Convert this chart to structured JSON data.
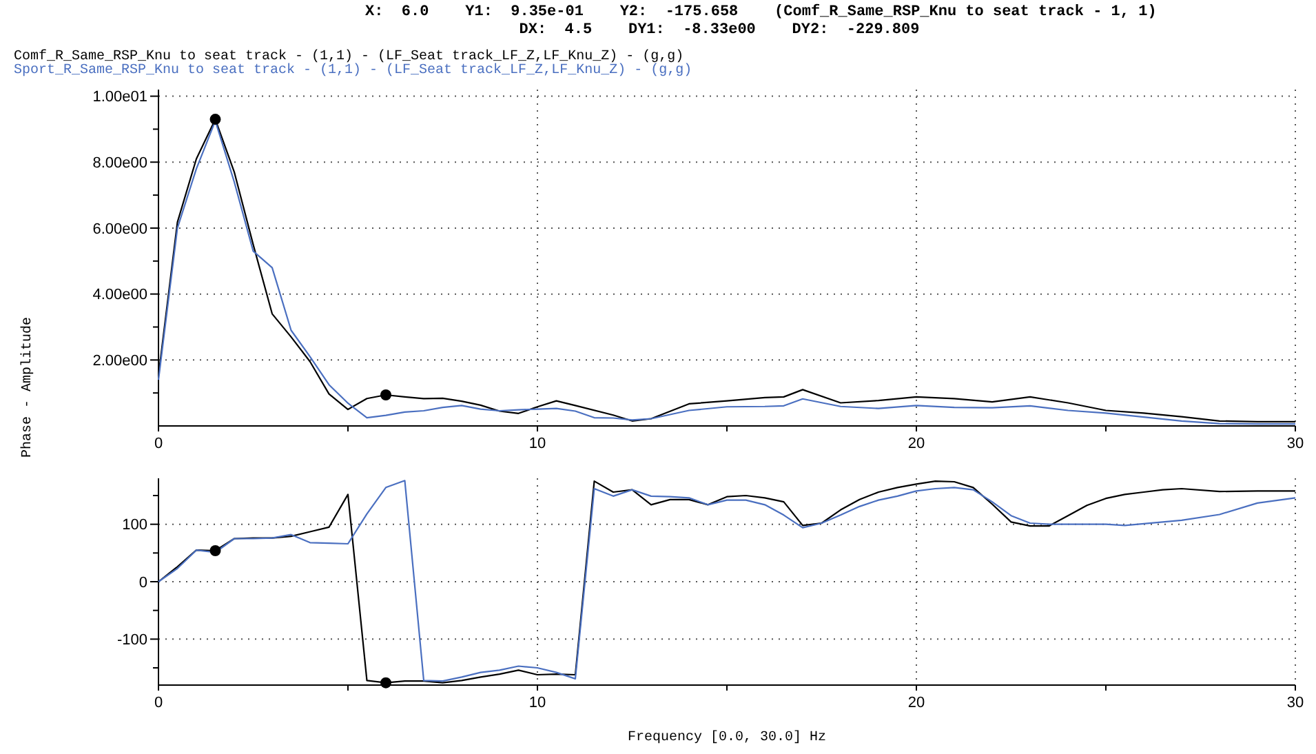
{
  "chart_data": [
    {
      "type": "line",
      "annotations": [
        "X:  6.0    Y1:  9.35e-01    Y2:  -175.658    (Comf_R_Same_RSP_Knu to seat track - 1, 1)",
        "DX:  4.5    DY1:  -8.33e00    DY2:  -229.809"
      ],
      "ylabel": "Phase - Amplitude",
      "legend": "top left",
      "grid": true,
      "marker": "none",
      "line_style": "solid",
      "xlim": [
        0,
        30
      ],
      "ylim": [
        0,
        10.2
      ],
      "xticks": [
        0,
        {
          "value": 5,
          "label": null
        },
        10,
        {
          "value": 15,
          "label": null
        },
        20,
        {
          "value": 25,
          "label": null
        },
        30
      ],
      "yticks": [
        {
          "value": 1,
          "label": null
        },
        {
          "value": 2,
          "label": "2.00e00"
        },
        {
          "value": 3,
          "label": null
        },
        {
          "value": 4,
          "label": "4.00e00"
        },
        {
          "value": 5,
          "label": null
        },
        {
          "value": 6,
          "label": "6.00e00"
        },
        {
          "value": 7,
          "label": null
        },
        {
          "value": 8,
          "label": "8.00e00"
        },
        {
          "value": 9,
          "label": null
        },
        {
          "value": 10,
          "label": "1.00e01"
        }
      ],
      "series": [
        {
          "name": "Comf_R_Same_RSP_Knu to seat track - (1,1) - (LF_Seat track_LF_Z,LF_Knu_Z) - (g,g)",
          "color": "#000000",
          "x": [
            0,
            0.5,
            1,
            1.5,
            2,
            2.5,
            3,
            3.5,
            4,
            4.5,
            5,
            5.5,
            6,
            6.5,
            7,
            7.5,
            8,
            8.5,
            9,
            9.5,
            10,
            10.5,
            11,
            12,
            12.5,
            13,
            14,
            15,
            16,
            16.5,
            17,
            18,
            19,
            20,
            21,
            22,
            23,
            24,
            25,
            26,
            27,
            28,
            29,
            30
          ],
          "values": [
            1.53,
            6.18,
            8.1,
            9.3,
            7.7,
            5.5,
            3.4,
            2.7,
            1.95,
            0.97,
            0.5,
            0.83,
            0.94,
            0.88,
            0.83,
            0.84,
            0.75,
            0.63,
            0.45,
            0.38,
            0.58,
            0.76,
            0.62,
            0.33,
            0.15,
            0.22,
            0.67,
            0.76,
            0.86,
            0.88,
            1.1,
            0.7,
            0.77,
            0.88,
            0.83,
            0.73,
            0.88,
            0.7,
            0.47,
            0.39,
            0.28,
            0.15,
            0.13,
            0.13
          ]
        },
        {
          "name": "Sport_R_Same_RSP_Knu to seat track - (1,1) - (LF_Seat track_LF_Z,LF_Knu_Z) - (g,g)",
          "color": "#4a6fc0",
          "x": [
            0,
            0.5,
            1,
            1.5,
            2,
            2.5,
            3,
            3.5,
            4,
            4.5,
            5,
            5.5,
            6,
            6.5,
            7,
            7.5,
            8,
            8.5,
            9,
            9.5,
            10,
            10.5,
            11,
            11.5,
            12,
            12.5,
            13,
            14,
            15,
            16,
            16.5,
            17,
            18,
            19,
            20,
            21,
            22,
            23,
            24,
            25,
            26,
            27,
            28,
            29,
            30
          ],
          "values": [
            1.4,
            6.0,
            7.8,
            9.25,
            7.4,
            5.3,
            4.8,
            2.9,
            2.1,
            1.25,
            0.69,
            0.25,
            0.32,
            0.42,
            0.46,
            0.56,
            0.62,
            0.51,
            0.46,
            0.49,
            0.51,
            0.53,
            0.45,
            0.25,
            0.24,
            0.18,
            0.22,
            0.47,
            0.58,
            0.59,
            0.61,
            0.82,
            0.59,
            0.53,
            0.62,
            0.56,
            0.55,
            0.61,
            0.47,
            0.39,
            0.27,
            0.15,
            0.07,
            0.06,
            0.06
          ]
        },
        {
          "type": "scatter",
          "color": "#000000",
          "marker": "circle",
          "x": [
            1.5,
            6
          ],
          "values": [
            9.3,
            0.94
          ]
        }
      ]
    },
    {
      "type": "line",
      "xlabel": "Frequency [0.0, 30.0] Hz",
      "grid": true,
      "marker": "none",
      "line_style": "solid",
      "xlim": [
        0,
        30
      ],
      "ylim": [
        -180,
        180
      ],
      "xticks": [
        0,
        {
          "value": 5,
          "label": null
        },
        10,
        {
          "value": 15,
          "label": null
        },
        20,
        {
          "value": 25,
          "label": null
        },
        30
      ],
      "yticks": [
        {
          "value": -150,
          "label": null
        },
        -100,
        {
          "value": -50,
          "label": null
        },
        0,
        {
          "value": 50,
          "label": null
        },
        100,
        {
          "value": 150,
          "label": null
        }
      ],
      "series": [
        {
          "color": "#000000",
          "x": [
            0,
            0.5,
            1,
            1.5,
            2,
            2.5,
            3,
            3.5,
            4,
            4.5,
            5,
            5.5,
            6,
            6.5,
            7,
            7.5,
            8,
            8.5,
            9,
            9.5,
            10,
            10.5,
            11,
            11.5,
            12,
            12.5,
            13,
            13.5,
            14,
            14.5,
            15,
            15.5,
            16,
            16.5,
            17,
            17.5,
            18,
            18.5,
            19,
            19.5,
            20,
            20.5,
            21,
            21.5,
            22,
            22.5,
            23,
            23.5,
            24,
            24.5,
            25,
            25.5,
            26,
            26.5,
            27,
            28,
            29,
            30
          ],
          "values": [
            0,
            26,
            55,
            54,
            75,
            76,
            76,
            79,
            87,
            95,
            152,
            -172,
            -176,
            -173,
            -173,
            -176,
            -172,
            -166,
            -161,
            -154,
            -162,
            -161,
            -162,
            175,
            156,
            160,
            134,
            143,
            143,
            134,
            148,
            150,
            146,
            139,
            98,
            102,
            125,
            143,
            156,
            164,
            170,
            175,
            174,
            164,
            135,
            104,
            97,
            97,
            115,
            133,
            145,
            152,
            156,
            160,
            162,
            157,
            158,
            158
          ]
        },
        {
          "color": "#4a6fc0",
          "x": [
            0,
            0.5,
            1,
            1.5,
            2,
            2.5,
            3,
            3.5,
            4,
            4.5,
            5,
            5.5,
            6,
            6.5,
            7,
            7.5,
            8,
            8.5,
            9,
            9.5,
            10,
            10.5,
            11,
            11.5,
            12,
            12.5,
            13,
            13.5,
            14,
            14.5,
            15,
            15.5,
            16,
            16.5,
            17,
            17.5,
            18,
            18.5,
            19,
            19.5,
            20,
            20.5,
            21,
            21.5,
            22,
            22.5,
            23,
            23.5,
            24,
            24.5,
            25,
            25.5,
            26,
            26.5,
            27,
            28,
            29,
            30
          ],
          "values": [
            0,
            23,
            55,
            51,
            75,
            75,
            76,
            82,
            68,
            67,
            66,
            118,
            164,
            176,
            -172,
            -173,
            -166,
            -158,
            -154,
            -147,
            -150,
            -158,
            -169,
            162,
            149,
            160,
            149,
            148,
            146,
            134,
            142,
            142,
            134,
            116,
            94,
            102,
            116,
            131,
            142,
            149,
            158,
            162,
            164,
            160,
            139,
            115,
            102,
            100,
            100,
            100,
            100,
            98,
            101,
            104,
            107,
            117,
            137,
            146
          ]
        },
        {
          "type": "scatter",
          "color": "#000000",
          "marker": "circle",
          "x": [
            1.5,
            6
          ],
          "values": [
            54,
            -176
          ]
        }
      ]
    }
  ]
}
